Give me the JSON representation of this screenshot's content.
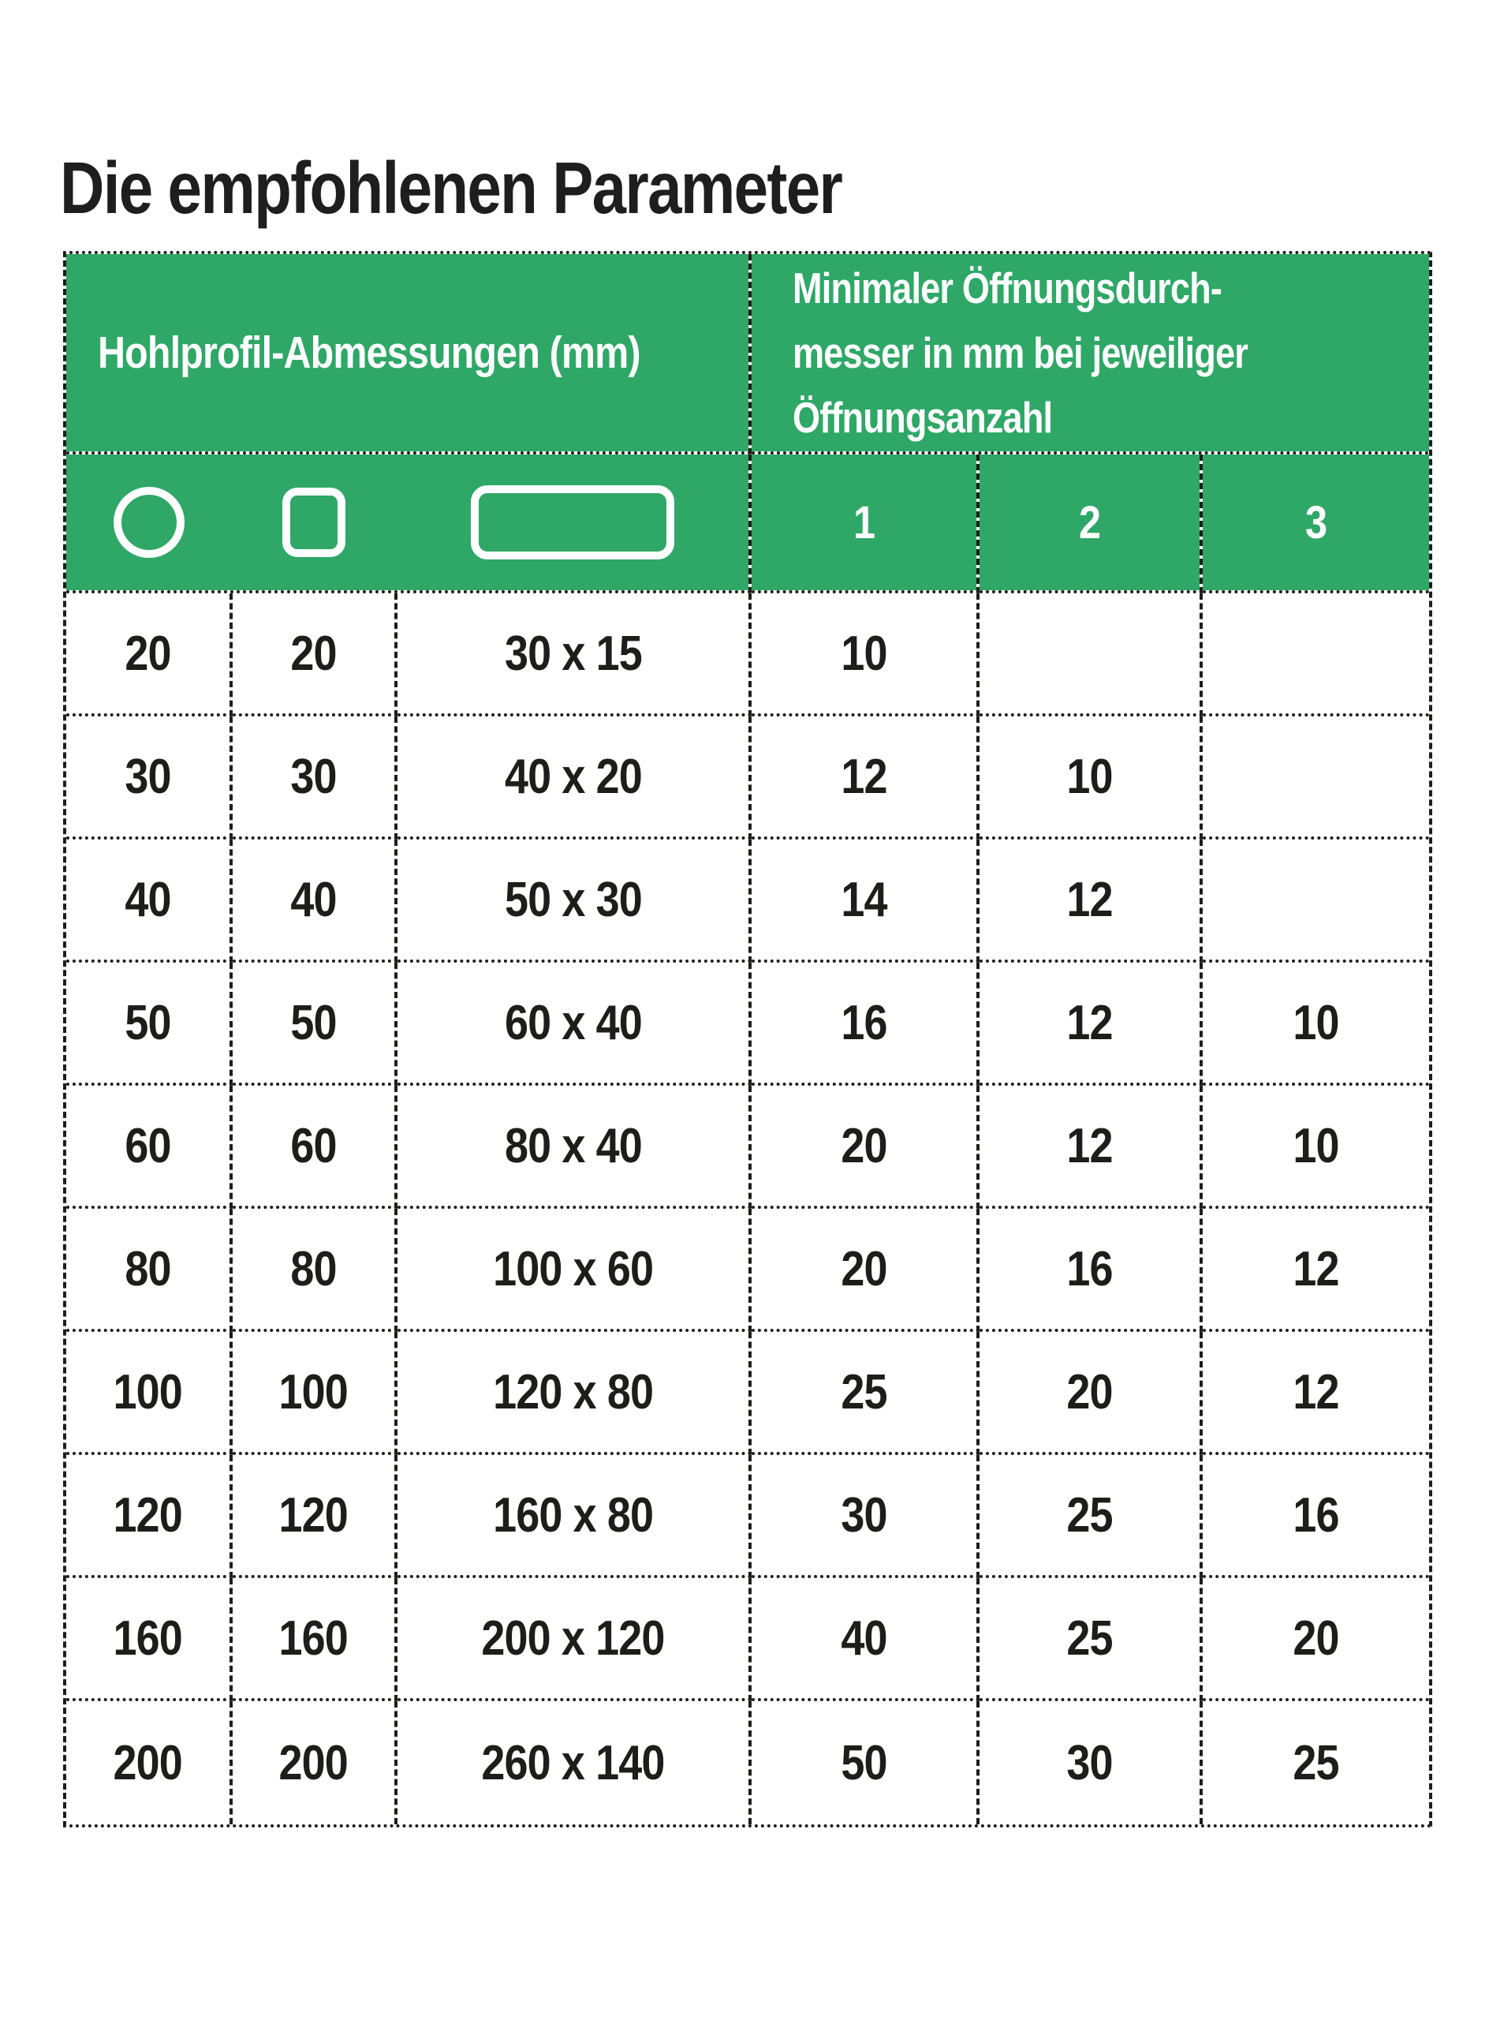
{
  "title": "Die empfohlenen Parameter",
  "colors": {
    "header_green": "#2fa767",
    "header_text": "#ffffff",
    "body_text": "#1d1d1b",
    "rule_black": "#1d1d1b",
    "page_background": "#ffffff"
  },
  "table": {
    "header": {
      "left_title": "Hohlprofil-Abmessungen (mm)",
      "right_title_lines": [
        "Minimaler Öffnungsdurch-",
        "messer in mm bei jeweiliger",
        "Öffnungsanzahl"
      ],
      "shape_icons": [
        {
          "name": "circle-profile-icon"
        },
        {
          "name": "square-profile-icon"
        },
        {
          "name": "rectangle-profile-icon"
        }
      ],
      "opening_counts": [
        "1",
        "2",
        "3"
      ]
    },
    "rows": [
      [
        "20",
        "20",
        "30 x 15",
        "10",
        "",
        ""
      ],
      [
        "30",
        "30",
        "40 x 20",
        "12",
        "10",
        ""
      ],
      [
        "40",
        "40",
        "50 x 30",
        "14",
        "12",
        ""
      ],
      [
        "50",
        "50",
        "60 x 40",
        "16",
        "12",
        "10"
      ],
      [
        "60",
        "60",
        "80 x 40",
        "20",
        "12",
        "10"
      ],
      [
        "80",
        "80",
        "100 x 60",
        "20",
        "16",
        "12"
      ],
      [
        "100",
        "100",
        "120 x 80",
        "25",
        "20",
        "12"
      ],
      [
        "120",
        "120",
        "160 x 80",
        "30",
        "25",
        "16"
      ],
      [
        "160",
        "160",
        "200 x 120",
        "40",
        "25",
        "20"
      ],
      [
        "200",
        "200",
        "260 x 140",
        "50",
        "30",
        "25"
      ]
    ]
  }
}
